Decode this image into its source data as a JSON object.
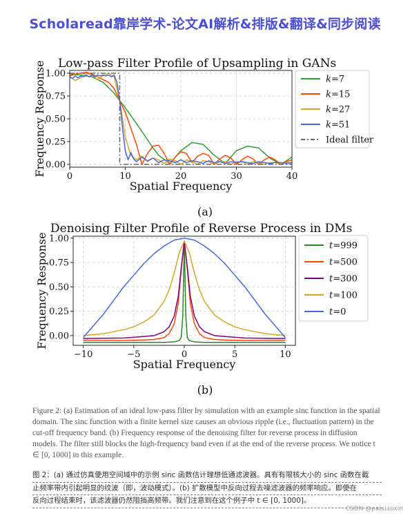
{
  "banner": {
    "text": "Scholaread靠岸学术-论文AI解析&排版&翻译&同步阅读"
  },
  "figure": {
    "sublabel_a": "(a)",
    "sublabel_b": "(b)",
    "caption_en": "Figure 2: (a) Estimation of an ideal low-pass filter by simulation with an example sinc function in the spatial domain. The sinc function with a finite kernel size causes an obvious ripple (i.e., fluctuation pattern) in the cut-off frequency band. (b) Frequency response of the denoising filter for reverse process in diffusion models. The filter still blocks the high-frequency band even if at the end of the reverse process. We notice t ∈ [0, 1000] in this example.",
    "caption_cn_lines": [
      "图 2：(a) 通过仿真使用空间域中的示例 sinc 函数估计理想低通滤波器。具有有限核大小的 sinc 函数在截",
      "止频率带内引起明显的纹波（即，波动模式）。(b) 扩散模型中反向过程去噪滤波器的频率响应。即使在",
      "反向过程结束时，该滤波器仍然阻挡高频带。我们注意到在这个例子中 t ∈ [0, 1000]。"
    ]
  },
  "watermark": "CSDN @paixiaoxin",
  "chart_data": [
    {
      "type": "line",
      "title": "Low-pass Filter Profile of Upsampling in GANs",
      "xlabel": "Spatial Frequency",
      "ylabel": "Frequency Response",
      "xlim": [
        0,
        40
      ],
      "ylim": [
        -0.03,
        1.03
      ],
      "xticks": [
        0,
        10,
        20,
        30,
        40
      ],
      "yticks": [
        0.0,
        0.25,
        0.5,
        0.75,
        1.0
      ],
      "ytick_labels": [
        "0.00",
        "0.25",
        "0.50",
        "0.75",
        "1.00"
      ],
      "grid": true,
      "legend_position": "outside-right",
      "series": [
        {
          "name": "k=7",
          "color": "#2ca02c",
          "x": [
            0,
            2,
            4,
            6,
            8,
            9,
            10,
            12,
            14,
            15,
            16,
            18,
            20,
            22,
            24,
            26,
            28,
            30,
            32,
            34,
            36,
            38,
            40
          ],
          "y": [
            0.99,
            0.98,
            0.96,
            0.9,
            0.78,
            0.7,
            0.62,
            0.45,
            0.27,
            0.18,
            0.1,
            0.01,
            0.15,
            0.24,
            0.22,
            0.1,
            0.01,
            0.15,
            0.2,
            0.18,
            0.07,
            0.0,
            0.08
          ]
        },
        {
          "name": "k=15",
          "color": "#ff4500",
          "x": [
            0,
            1,
            2,
            3,
            4,
            5,
            6,
            7,
            8,
            9,
            10,
            11,
            12,
            13,
            14,
            15,
            16,
            17,
            18,
            19,
            20,
            21,
            22,
            23,
            24,
            25,
            26,
            27,
            28,
            29,
            30,
            31,
            32,
            33,
            34,
            35,
            36,
            37,
            38,
            39,
            40
          ],
          "y": [
            0.97,
            0.99,
            1.0,
            1.01,
            0.99,
            0.96,
            0.93,
            0.9,
            0.83,
            0.7,
            0.57,
            0.4,
            0.22,
            0.0,
            0.12,
            0.2,
            0.21,
            0.12,
            0.0,
            0.08,
            0.14,
            0.12,
            0.02,
            0.09,
            0.12,
            0.1,
            0.0,
            0.06,
            0.1,
            0.07,
            0.0,
            0.05,
            0.09,
            0.06,
            0.0,
            0.05,
            0.08,
            0.05,
            0.0,
            0.03,
            0.05
          ]
        },
        {
          "name": "k=27",
          "color": "#daa520",
          "x": [
            0,
            1,
            2,
            3,
            4,
            5,
            6,
            7,
            8,
            9,
            10,
            11,
            12,
            13,
            14,
            15,
            16,
            17,
            18,
            19,
            20,
            21,
            22,
            23,
            24,
            25,
            26,
            27,
            28,
            29,
            30,
            31,
            32,
            33,
            34,
            35,
            36,
            37,
            38,
            39,
            40
          ],
          "y": [
            0.96,
            0.92,
            0.95,
            1.0,
            0.98,
            0.93,
            0.97,
            1.0,
            0.96,
            0.7,
            0.3,
            0.1,
            0.05,
            0.09,
            0.03,
            0.07,
            0.05,
            0.01,
            0.06,
            0.04,
            0.0,
            0.05,
            0.03,
            0.0,
            0.04,
            0.03,
            0.0,
            0.03,
            0.03,
            0.0,
            0.03,
            0.03,
            0.0,
            0.03,
            0.02,
            0.0,
            0.02,
            0.02,
            0.0,
            0.02,
            0.02
          ]
        },
        {
          "name": "k=51",
          "color": "#4169e1",
          "x": [
            0,
            0.5,
            1,
            1.5,
            2,
            2.5,
            3,
            3.5,
            4,
            4.5,
            5,
            5.5,
            6,
            6.5,
            7,
            7.5,
            8,
            8.5,
            9,
            9.5,
            10,
            10.5,
            11,
            11.5,
            12,
            13,
            14,
            15,
            16,
            17,
            18,
            19,
            20,
            21,
            22,
            23,
            24,
            25,
            26,
            27,
            28,
            29,
            30,
            31,
            32,
            33,
            34,
            35,
            36,
            37,
            38,
            39,
            40
          ],
          "y": [
            0.96,
            0.94,
            0.97,
            0.95,
            0.97,
            0.96,
            0.98,
            0.96,
            0.98,
            0.96,
            0.98,
            0.97,
            0.98,
            0.97,
            0.98,
            0.96,
            0.98,
            0.9,
            0.7,
            0.4,
            0.15,
            0.05,
            0.13,
            0.06,
            0.03,
            0.08,
            0.04,
            0.07,
            0.02,
            0.05,
            0.04,
            0.02,
            0.05,
            0.02,
            0.04,
            0.03,
            0.01,
            0.04,
            0.02,
            0.03,
            0.01,
            0.03,
            0.02,
            0.03,
            0.02,
            0.01,
            0.03,
            0.02,
            0.01,
            0.02,
            0.02,
            0.01,
            0.02
          ]
        },
        {
          "name": "Ideal filter",
          "color": "#666666",
          "dash": "dashdot",
          "x": [
            0,
            9,
            9,
            40
          ],
          "y": [
            1.0,
            1.0,
            0.0,
            0.0
          ]
        }
      ]
    },
    {
      "type": "line",
      "title": "Denoising Filter Profile of Reverse Process in DMs",
      "xlabel": "Spatial Frequency",
      "ylabel": "Frequency Response",
      "xlim": [
        -11,
        11
      ],
      "ylim": [
        -0.1,
        1.02
      ],
      "xticks": [
        -10,
        -5,
        0,
        5,
        10
      ],
      "yticks": [
        0.0,
        0.25,
        0.5,
        0.75,
        1.0
      ],
      "ytick_labels": [
        "0.00",
        "0.25",
        "0.50",
        "0.75",
        "1.00"
      ],
      "grid": true,
      "legend_position": "outside-right",
      "series": [
        {
          "name": "t=999",
          "color": "#228b22",
          "x": [
            -10,
            -2,
            -1,
            -0.5,
            -0.3,
            -0.15,
            0,
            0.15,
            0.3,
            0.5,
            1,
            2,
            10
          ],
          "y": [
            -0.07,
            -0.07,
            -0.065,
            -0.05,
            -0.02,
            0.2,
            0.95,
            0.2,
            -0.02,
            -0.05,
            -0.065,
            -0.07,
            -0.07
          ]
        },
        {
          "name": "t=500",
          "color": "#ff4500",
          "x": [
            -10,
            -6,
            -4,
            -3,
            -2,
            -1.5,
            -1,
            -0.6,
            -0.3,
            0,
            0.3,
            0.6,
            1,
            1.5,
            2,
            3,
            4,
            6,
            10
          ],
          "y": [
            -0.05,
            -0.05,
            -0.045,
            -0.04,
            -0.02,
            0.02,
            0.12,
            0.33,
            0.68,
            0.97,
            0.68,
            0.33,
            0.12,
            0.02,
            -0.02,
            -0.04,
            -0.045,
            -0.05,
            -0.05
          ]
        },
        {
          "name": "t=300",
          "color": "#800080",
          "x": [
            -10,
            -6,
            -4,
            -3,
            -2,
            -1.5,
            -1,
            -0.6,
            -0.3,
            0,
            0.3,
            0.6,
            1,
            1.5,
            2,
            3,
            4,
            6,
            10
          ],
          "y": [
            -0.03,
            -0.025,
            -0.01,
            0.0,
            0.04,
            0.09,
            0.2,
            0.4,
            0.7,
            0.97,
            0.7,
            0.4,
            0.2,
            0.09,
            0.04,
            0.0,
            -0.01,
            -0.025,
            -0.03
          ]
        },
        {
          "name": "t=100",
          "color": "#daa520",
          "x": [
            -10,
            -8,
            -6,
            -5,
            -4,
            -3,
            -2,
            -1.5,
            -1,
            -0.5,
            0,
            0.5,
            1,
            1.5,
            2,
            3,
            4,
            5,
            6,
            8,
            10
          ],
          "y": [
            0.0,
            0.02,
            0.06,
            0.09,
            0.14,
            0.21,
            0.35,
            0.47,
            0.64,
            0.85,
            0.97,
            0.85,
            0.64,
            0.47,
            0.35,
            0.21,
            0.14,
            0.09,
            0.06,
            0.02,
            0.0
          ]
        },
        {
          "name": "t=0",
          "color": "#4169e1",
          "x": [
            -10,
            -9,
            -8,
            -7,
            -6,
            -5,
            -4,
            -3,
            -2,
            -1,
            0,
            1,
            2,
            3,
            4,
            5,
            6,
            7,
            8,
            9,
            10
          ],
          "y": [
            -0.02,
            0.1,
            0.22,
            0.36,
            0.5,
            0.62,
            0.74,
            0.84,
            0.92,
            0.98,
            1.0,
            0.98,
            0.92,
            0.84,
            0.74,
            0.62,
            0.5,
            0.36,
            0.22,
            0.1,
            -0.02
          ]
        }
      ]
    }
  ]
}
